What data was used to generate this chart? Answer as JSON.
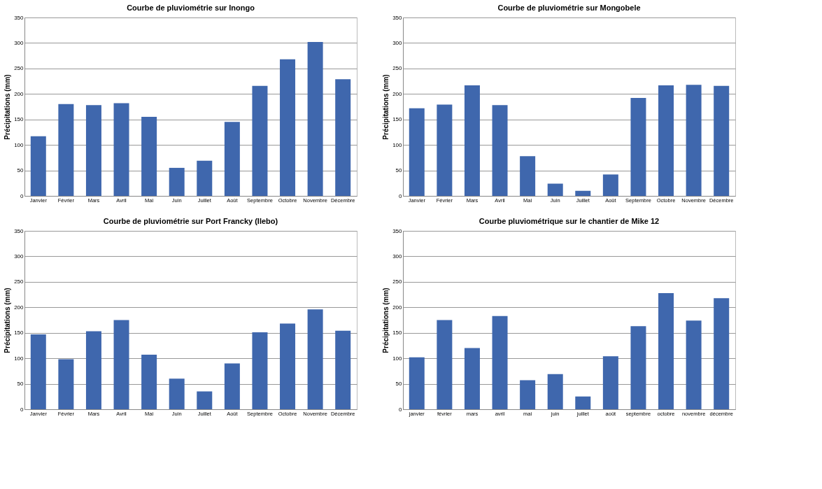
{
  "chart_data": [
    {
      "type": "bar",
      "title": "Courbe de pluviométrie sur Inongo",
      "ylabel": "Précipitations (mm)",
      "categories": [
        "Janvier",
        "Février",
        "Mars",
        "Avril",
        "Mai",
        "Juin",
        "Juillet",
        "Août",
        "Septembre",
        "Octobre",
        "Novembre",
        "Décembre"
      ],
      "values": [
        117,
        180,
        178,
        182,
        155,
        55,
        69,
        145,
        216,
        268,
        302,
        229
      ],
      "color": "#3f67ad",
      "ylim": [
        0,
        350
      ],
      "yticks": [
        0,
        50,
        100,
        150,
        200,
        250,
        300,
        350
      ],
      "grid": "y"
    },
    {
      "type": "bar",
      "title": "Courbe de pluviométrie sur Mongobele",
      "ylabel": "Précipitations (mm)",
      "categories": [
        "Janvier",
        "Février",
        "Mars",
        "Avril",
        "Mai",
        "Juin",
        "Juillet",
        "Août",
        "Septembre",
        "Octobre",
        "Novembre",
        "Décembre"
      ],
      "values": [
        172,
        179,
        217,
        178,
        78,
        24,
        10,
        42,
        192,
        217,
        218,
        216
      ],
      "color": "#3f67ad",
      "ylim": [
        0,
        350
      ],
      "yticks": [
        0,
        50,
        100,
        150,
        200,
        250,
        300,
        350
      ],
      "grid": "y"
    },
    {
      "type": "bar",
      "title": "Courbe de pluviométrie sur Port Francky (Ilebo)",
      "ylabel": "Précipitations (mm)",
      "categories": [
        "Janvier",
        "Février",
        "Mars",
        "Avril",
        "Mai",
        "Juin",
        "Juillet",
        "Août",
        "Septembre",
        "Octobre",
        "Novembre",
        "Décembre"
      ],
      "values": [
        147,
        98,
        153,
        175,
        107,
        60,
        35,
        90,
        151,
        168,
        196,
        154
      ],
      "color": "#3f67ad",
      "ylim": [
        0,
        350
      ],
      "yticks": [
        0,
        50,
        100,
        150,
        200,
        250,
        300,
        350
      ],
      "grid": "y"
    },
    {
      "type": "bar",
      "title": "Courbe pluviométrique sur le chantier de Mike 12",
      "ylabel": "Précipitations (mm)",
      "categories": [
        "janvier",
        "février",
        "mars",
        "avril",
        "mai",
        "juin",
        "juillet",
        "août",
        "septembre",
        "octobre",
        "novembre",
        "décembre"
      ],
      "values": [
        102,
        175,
        120,
        183,
        57,
        69,
        25,
        104,
        163,
        228,
        174,
        218
      ],
      "color": "#3f67ad",
      "ylim": [
        0,
        350
      ],
      "yticks": [
        0,
        50,
        100,
        150,
        200,
        250,
        300,
        350
      ],
      "grid": "y"
    }
  ]
}
